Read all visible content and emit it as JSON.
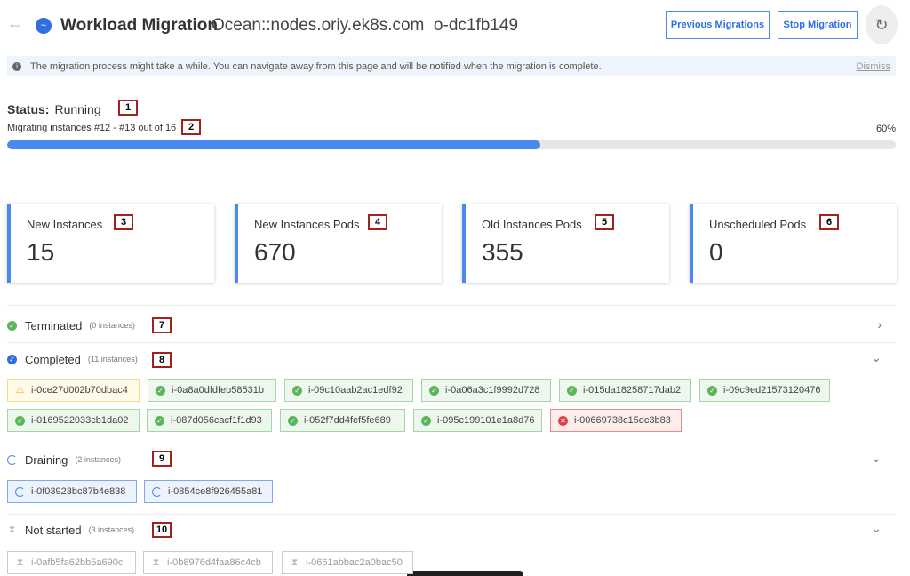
{
  "header": {
    "title": "Workload Migration",
    "subtitle": "Ocean::nodes.oriy.ek8s.com  o-dc1fb149",
    "previous_label": "Previous Migrations",
    "stop_label": "Stop Migration"
  },
  "banner": {
    "text": "The migration process might take a while. You can navigate away from this page and will be notified when the migration is complete.",
    "dismiss": "Dismiss"
  },
  "status": {
    "label": "Status:",
    "value": "Running",
    "migrating": "Migrating instances #12 - #13 out of 16",
    "percent_text": "60%",
    "progress": 60
  },
  "cards": [
    {
      "label": "New Instances",
      "value": "15"
    },
    {
      "label": "New Instances Pods",
      "value": "670"
    },
    {
      "label": "Old Instances Pods",
      "value": "355"
    },
    {
      "label": "Unscheduled Pods",
      "value": "0"
    }
  ],
  "sections": {
    "terminated": {
      "title": "Terminated",
      "count": "(0 instances)"
    },
    "completed": {
      "title": "Completed",
      "count": "(11 instances)",
      "chips": [
        {
          "id": "i-0ce27d002b70dbac4",
          "state": "warning"
        },
        {
          "id": "i-0a8a0dfdfeb58531b",
          "state": "ok"
        },
        {
          "id": "i-09c10aab2ac1edf92",
          "state": "ok"
        },
        {
          "id": "i-0a06a3c1f9992d728",
          "state": "ok"
        },
        {
          "id": "i-015da18258717dab2",
          "state": "ok"
        },
        {
          "id": "i-09c9ed21573120476",
          "state": "ok"
        },
        {
          "id": "i-0169522033cb1da02",
          "state": "ok"
        },
        {
          "id": "i-087d056cacf1f1d93",
          "state": "ok"
        },
        {
          "id": "i-052f7dd4fef5fe689",
          "state": "ok"
        },
        {
          "id": "i-095c199101e1a8d76",
          "state": "ok"
        },
        {
          "id": "i-00669738c15dc3b83",
          "state": "error"
        }
      ]
    },
    "draining": {
      "title": "Draining",
      "count": "(2 instances)",
      "chips": [
        {
          "id": "i-0f03923bc87b4e838"
        },
        {
          "id": "i-0854ce8f926455a81"
        }
      ]
    },
    "not_started": {
      "title": "Not started",
      "count": "(3 instances)",
      "chips": [
        {
          "id": "i-0afb5fa62bb5a690c"
        },
        {
          "id": "i-0b8976d4faa86c4cb"
        },
        {
          "id": "i-0661abbac2a0bac50"
        }
      ]
    }
  },
  "annotations": [
    "1",
    "2",
    "3",
    "4",
    "5",
    "6",
    "7",
    "8",
    "9",
    "10"
  ],
  "colors": {
    "accent": "#4a8af0",
    "ok": "#5bb55b",
    "error": "#e04040",
    "warning": "#f0a030",
    "annotation": "#a0221c"
  }
}
